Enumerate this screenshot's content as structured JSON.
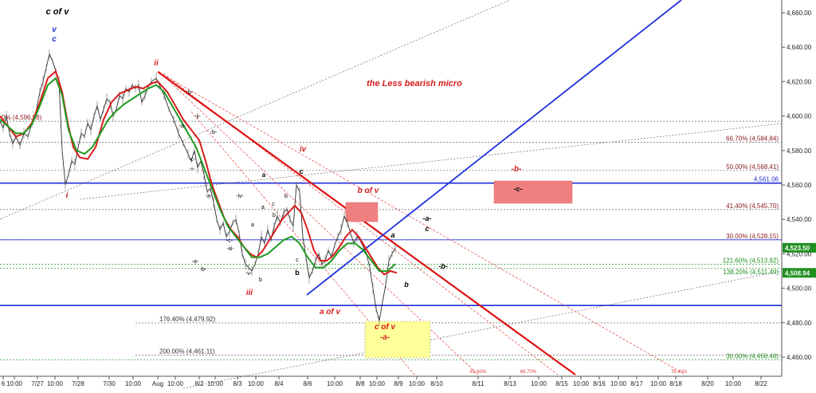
{
  "chart_data": {
    "type": "line",
    "title": "",
    "subtitle": "the Less bearish micro",
    "xlabel": "",
    "ylabel": "",
    "ylim": [
      4450,
      4665
    ],
    "y_axis_position": "right",
    "x_ticks": [
      "6",
      "10:00",
      "7/27",
      "10:00",
      "7/28",
      "7/30",
      "10:00",
      "Aug",
      "10:00",
      "8/2",
      "10:00",
      "8/3",
      "10:00",
      "8/4",
      "8/6",
      "10:00",
      "8/8",
      "10:00",
      "8/9",
      "10:00",
      "8/10",
      "8/11",
      "8/13",
      "10:00",
      "8/15",
      "10:00",
      "8/16",
      "10:00",
      "8/17",
      "10:00",
      "8/18",
      "8/20",
      "10:00",
      "8/22"
    ],
    "y_ticks": [
      "4,460.00",
      "4,480.00",
      "4,500.00",
      "4,520.00",
      "4,540.00",
      "4,560.00",
      "4,580.00",
      "4,600.00",
      "4,620.00",
      "4,640.00",
      "4,660.00"
    ],
    "price_badges": [
      {
        "label": "4,523.50",
        "value": 4523.5,
        "color": "#1f8f1f"
      },
      {
        "label": "4,508.94",
        "value": 4508.94,
        "color": "#1f8f1f"
      }
    ],
    "price_points": [
      [
        0,
        4597
      ],
      [
        4,
        4593
      ],
      [
        8,
        4600
      ],
      [
        12,
        4590
      ],
      [
        16,
        4584
      ],
      [
        20,
        4588
      ],
      [
        25,
        4583
      ],
      [
        30,
        4590
      ],
      [
        35,
        4588
      ],
      [
        40,
        4596
      ],
      [
        45,
        4602
      ],
      [
        50,
        4614
      ],
      [
        54,
        4620
      ],
      [
        58,
        4628
      ],
      [
        62,
        4636
      ],
      [
        66,
        4632
      ],
      [
        70,
        4626
      ],
      [
        74,
        4620
      ],
      [
        78,
        4580
      ],
      [
        82,
        4560
      ],
      [
        86,
        4566
      ],
      [
        90,
        4574
      ],
      [
        94,
        4572
      ],
      [
        98,
        4582
      ],
      [
        102,
        4590
      ],
      [
        106,
        4588
      ],
      [
        110,
        4596
      ],
      [
        114,
        4592
      ],
      [
        118,
        4600
      ],
      [
        122,
        4606
      ],
      [
        126,
        4598
      ],
      [
        130,
        4604
      ],
      [
        134,
        4610
      ],
      [
        138,
        4608
      ],
      [
        142,
        4600
      ],
      [
        146,
        4604
      ],
      [
        150,
        4612
      ],
      [
        154,
        4610
      ],
      [
        158,
        4616
      ],
      [
        162,
        4614
      ],
      [
        166,
        4618
      ],
      [
        170,
        4616
      ],
      [
        174,
        4618
      ],
      [
        178,
        4608
      ],
      [
        182,
        4612
      ],
      [
        186,
        4617
      ],
      [
        190,
        4620
      ],
      [
        196,
        4622
      ],
      [
        200,
        4618
      ],
      [
        206,
        4612
      ],
      [
        212,
        4604
      ],
      [
        218,
        4598
      ],
      [
        224,
        4590
      ],
      [
        230,
        4584
      ],
      [
        236,
        4578
      ],
      [
        240,
        4574
      ],
      [
        244,
        4580
      ],
      [
        248,
        4570
      ],
      [
        252,
        4574
      ],
      [
        256,
        4566
      ],
      [
        260,
        4556
      ],
      [
        264,
        4558
      ],
      [
        268,
        4550
      ],
      [
        272,
        4540
      ],
      [
        276,
        4534
      ],
      [
        280,
        4538
      ],
      [
        284,
        4530
      ],
      [
        288,
        4533
      ],
      [
        292,
        4538
      ],
      [
        296,
        4540
      ],
      [
        300,
        4532
      ],
      [
        304,
        4520
      ],
      [
        308,
        4514
      ],
      [
        312,
        4512
      ],
      [
        316,
        4510
      ],
      [
        320,
        4514
      ],
      [
        324,
        4520
      ],
      [
        328,
        4530
      ],
      [
        332,
        4526
      ],
      [
        336,
        4534
      ],
      [
        340,
        4528
      ],
      [
        344,
        4536
      ],
      [
        348,
        4542
      ],
      [
        352,
        4538
      ],
      [
        356,
        4544
      ],
      [
        360,
        4546
      ],
      [
        364,
        4540
      ],
      [
        368,
        4536
      ],
      [
        372,
        4560
      ],
      [
        376,
        4556
      ],
      [
        380,
        4530
      ],
      [
        384,
        4518
      ],
      [
        388,
        4506
      ],
      [
        392,
        4510
      ],
      [
        396,
        4516
      ],
      [
        400,
        4520
      ],
      [
        404,
        4514
      ],
      [
        408,
        4516
      ],
      [
        412,
        4522
      ],
      [
        416,
        4518
      ],
      [
        420,
        4525
      ],
      [
        424,
        4530
      ],
      [
        428,
        4534
      ],
      [
        432,
        4542
      ],
      [
        436,
        4538
      ],
      [
        440,
        4532
      ],
      [
        444,
        4526
      ],
      [
        448,
        4530
      ],
      [
        452,
        4528
      ],
      [
        456,
        4524
      ],
      [
        460,
        4520
      ],
      [
        464,
        4512
      ],
      [
        468,
        4500
      ],
      [
        472,
        4488
      ],
      [
        476,
        4481
      ],
      [
        480,
        4492
      ],
      [
        484,
        4502
      ],
      [
        488,
        4516
      ],
      [
        492,
        4520
      ],
      [
        496,
        4523.5
      ]
    ],
    "moving_averages": [
      {
        "name": "",
        "color": "#d91c1c",
        "points": [
          [
            0,
            4600
          ],
          [
            10,
            4594
          ],
          [
            20,
            4588
          ],
          [
            30,
            4590
          ],
          [
            40,
            4596
          ],
          [
            50,
            4608
          ],
          [
            60,
            4622
          ],
          [
            70,
            4626
          ],
          [
            78,
            4614
          ],
          [
            85,
            4596
          ],
          [
            92,
            4582
          ],
          [
            100,
            4576
          ],
          [
            110,
            4575
          ],
          [
            120,
            4582
          ],
          [
            130,
            4598
          ],
          [
            140,
            4608
          ],
          [
            150,
            4613
          ],
          [
            160,
            4615
          ],
          [
            170,
            4617
          ],
          [
            180,
            4616
          ],
          [
            190,
            4619
          ],
          [
            198,
            4620
          ],
          [
            210,
            4614
          ],
          [
            220,
            4606
          ],
          [
            230,
            4598
          ],
          [
            240,
            4592
          ],
          [
            250,
            4586
          ],
          [
            258,
            4574
          ],
          [
            266,
            4560
          ],
          [
            274,
            4550
          ],
          [
            282,
            4540
          ],
          [
            290,
            4534
          ],
          [
            298,
            4530
          ],
          [
            306,
            4524
          ],
          [
            314,
            4520
          ],
          [
            322,
            4518
          ],
          [
            330,
            4522
          ],
          [
            338,
            4528
          ],
          [
            346,
            4534
          ],
          [
            354,
            4540
          ],
          [
            362,
            4544
          ],
          [
            370,
            4548
          ],
          [
            378,
            4544
          ],
          [
            386,
            4534
          ],
          [
            394,
            4522
          ],
          [
            402,
            4516
          ],
          [
            410,
            4516
          ],
          [
            418,
            4519
          ],
          [
            426,
            4524
          ],
          [
            434,
            4530
          ],
          [
            442,
            4534
          ],
          [
            450,
            4530
          ],
          [
            458,
            4524
          ],
          [
            466,
            4518
          ],
          [
            474,
            4512
          ],
          [
            482,
            4508
          ],
          [
            490,
            4510
          ],
          [
            498,
            4508.94
          ]
        ]
      },
      {
        "name": "",
        "color": "#1f9a1f",
        "points": [
          [
            0,
            4598
          ],
          [
            10,
            4594
          ],
          [
            20,
            4590
          ],
          [
            30,
            4590
          ],
          [
            40,
            4595
          ],
          [
            50,
            4606
          ],
          [
            60,
            4618
          ],
          [
            70,
            4622
          ],
          [
            78,
            4612
          ],
          [
            86,
            4592
          ],
          [
            96,
            4580
          ],
          [
            106,
            4578
          ],
          [
            116,
            4582
          ],
          [
            126,
            4590
          ],
          [
            136,
            4598
          ],
          [
            146,
            4603
          ],
          [
            156,
            4607
          ],
          [
            166,
            4610
          ],
          [
            176,
            4613
          ],
          [
            186,
            4616
          ],
          [
            196,
            4618
          ],
          [
            206,
            4614
          ],
          [
            216,
            4606
          ],
          [
            226,
            4598
          ],
          [
            236,
            4590
          ],
          [
            246,
            4582
          ],
          [
            256,
            4570
          ],
          [
            266,
            4558
          ],
          [
            276,
            4546
          ],
          [
            286,
            4536
          ],
          [
            296,
            4530
          ],
          [
            306,
            4524
          ],
          [
            316,
            4518
          ],
          [
            326,
            4518
          ],
          [
            336,
            4520
          ],
          [
            346,
            4524
          ],
          [
            356,
            4528
          ],
          [
            366,
            4530
          ],
          [
            376,
            4526
          ],
          [
            386,
            4518
          ],
          [
            396,
            4512
          ],
          [
            406,
            4512
          ],
          [
            416,
            4516
          ],
          [
            426,
            4522
          ],
          [
            436,
            4526
          ],
          [
            446,
            4526
          ],
          [
            456,
            4522
          ],
          [
            466,
            4516
          ],
          [
            476,
            4510
          ],
          [
            486,
            4510
          ],
          [
            496,
            4514
          ]
        ]
      }
    ],
    "fib_levels": [
      {
        "label": "66.70% (4,584.84)",
        "value": 4584.84,
        "side": "right"
      },
      {
        "label": "50.00% (4,568.41)",
        "value": 4568.41,
        "side": "right"
      },
      {
        "label": "41.40% (4,545.70)",
        "value": 4545.7,
        "side": "right"
      },
      {
        "label": "30.00% (4,528.15)",
        "value": 4528.15,
        "side": "right"
      },
      {
        "label": "121.60% (4,513.92)",
        "value": 4513.92,
        "side": "right"
      },
      {
        "label": "138.20% (4,511.49)",
        "value": 4511.49,
        "side": "right"
      },
      {
        "label": "30.00% (4,458.48)",
        "value": 4458.48,
        "side": "right"
      },
      {
        "label": "0% (4,596.98)",
        "value": 4596.98,
        "side": "left"
      },
      {
        "label": "176.40% (4,479.92)",
        "value": 4479.92,
        "side": "mid"
      },
      {
        "label": "200.00% (4,461.11)",
        "value": 4461.11,
        "side": "mid"
      }
    ],
    "horizontal_lines": [
      {
        "label": "4,561.06",
        "value": 4561.06,
        "color": "#1f2fd6"
      },
      {
        "value": 4528.15,
        "color": "#1f2fd6"
      },
      {
        "value": 4490,
        "color": "#1f2fd6"
      }
    ],
    "wave_labels": [
      {
        "text": "c of v",
        "color": "#000000"
      },
      {
        "text": "v",
        "color": "#1f2fd6"
      },
      {
        "text": "c",
        "color": "#1f2fd6"
      },
      {
        "text": "ii",
        "color": "#d91c1c"
      },
      {
        "text": "i",
        "color": "#d91c1c"
      },
      {
        "text": "iii",
        "color": "#d91c1c"
      },
      {
        "text": "iv",
        "color": "#d91c1c"
      },
      {
        "text": "b of v",
        "color": "#d91c1c"
      },
      {
        "text": "a of v",
        "color": "#d91c1c"
      },
      {
        "text": "c of v",
        "color": "#d91c1c"
      },
      {
        "text": "-a-",
        "color": "#d91c1c"
      },
      {
        "text": "-b-",
        "color": "#d91c1c"
      },
      {
        "text": "-c-",
        "color": "#000000"
      },
      {
        "text": "-a-",
        "color": "#000000"
      },
      {
        "text": "c",
        "color": "#000000"
      },
      {
        "text": "-b-",
        "color": "#000000"
      },
      {
        "text": "a",
        "color": "#000000"
      },
      {
        "text": "b",
        "color": "#000000"
      },
      {
        "text": "c",
        "color": "#000000"
      },
      {
        "text": "a",
        "color": "#000000"
      },
      {
        "text": "b",
        "color": "#000000"
      },
      {
        "text": "c",
        "color": "#000000"
      },
      {
        "text": "b",
        "color": "#000000"
      },
      {
        "text": "a",
        "color": "#000000"
      },
      {
        "text": "-iv-",
        "color": "#000000"
      },
      {
        "text": "-c-",
        "color": "#000000"
      },
      {
        "text": "-iii-",
        "color": "#000000"
      },
      {
        "text": "-v-",
        "color": "#000000"
      },
      {
        "text": "b",
        "color": "#000000"
      },
      {
        "text": "-a-",
        "color": "#000000"
      },
      {
        "text": "-b-",
        "color": "#000000"
      },
      {
        "text": "-ii-",
        "color": "#000000"
      },
      {
        "text": "-a-",
        "color": "#000000"
      },
      {
        "text": "-c-",
        "color": "#000000"
      },
      {
        "text": "-i-",
        "color": "#000000"
      },
      {
        "text": "-b-",
        "color": "#000000"
      },
      {
        "text": "a",
        "color": "#000000"
      },
      {
        "text": "b",
        "color": "#000000"
      },
      {
        "text": "c",
        "color": "#000000"
      },
      {
        "text": "-a-",
        "color": "#000000"
      },
      {
        "text": "-b-",
        "color": "#000000"
      }
    ],
    "small_labels": [
      "61.80%",
      "66.70%",
      "76.40%"
    ],
    "grid": false,
    "legend": "none",
    "colors": {
      "price": "#2b2b2b",
      "red_trend": "#e01010",
      "blue_trend": "#2030e0",
      "box_red": "#f08080",
      "box_yellow": "#ffff99"
    }
  }
}
